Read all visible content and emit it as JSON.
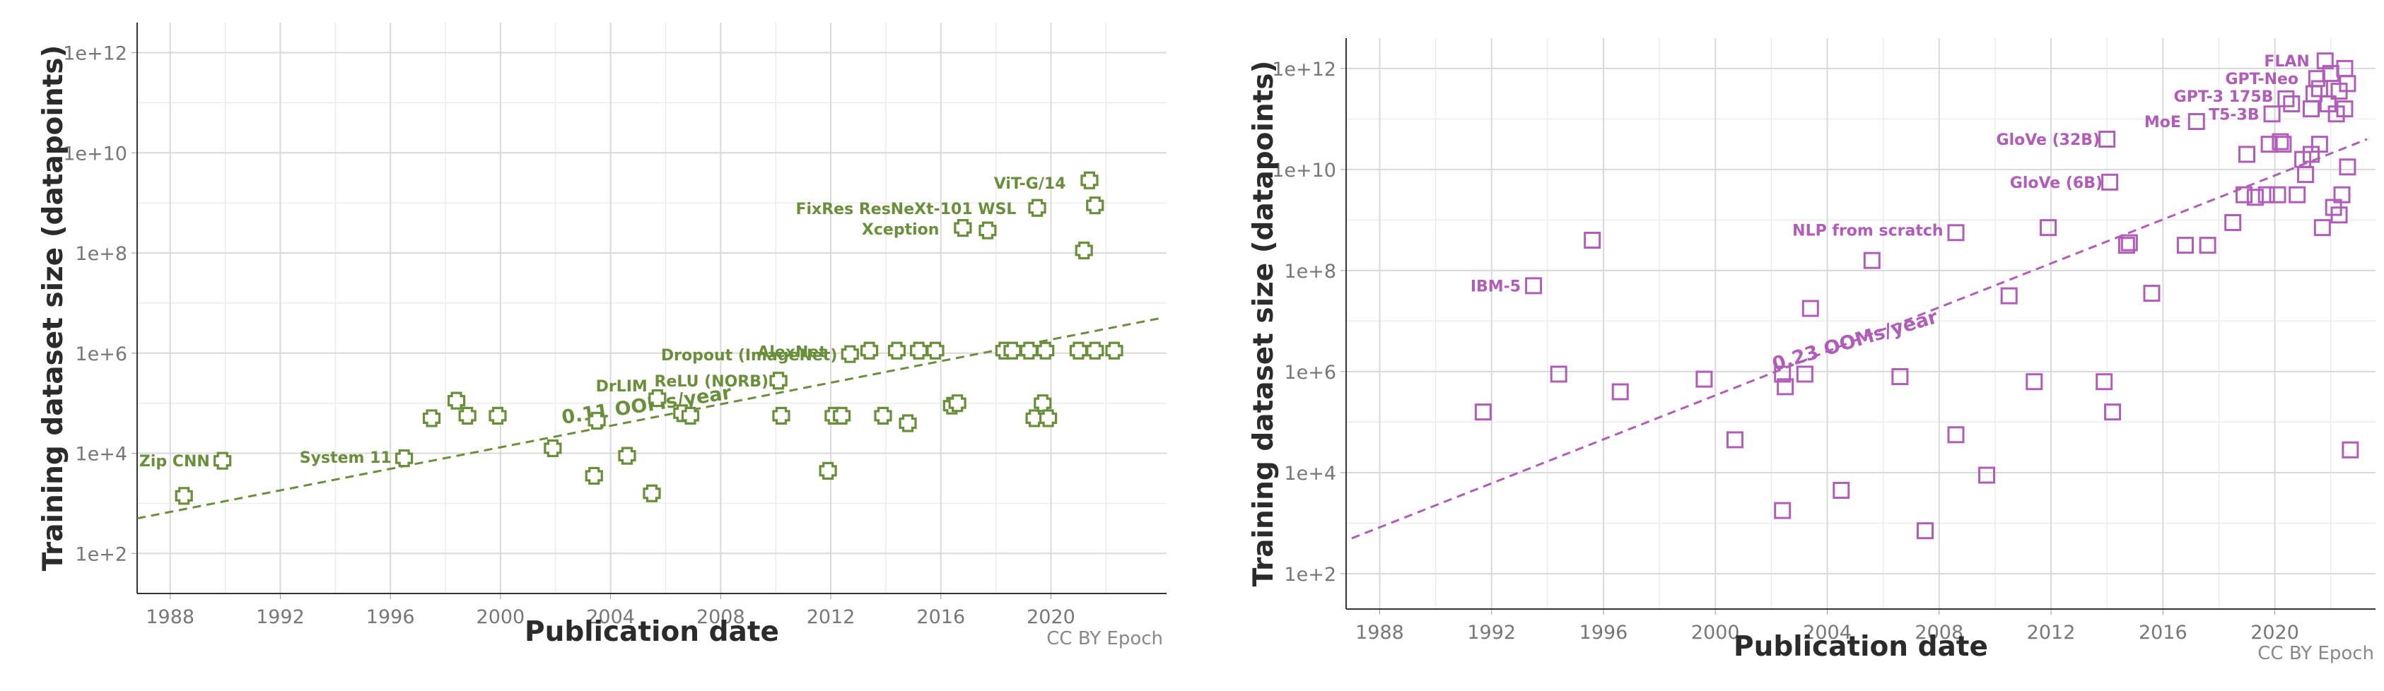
{
  "chart_data": [
    {
      "type": "scatter",
      "color": "#6a8f3a",
      "marker": "plus",
      "xlabel": "Publication date",
      "ylabel": "Training dataset size (datapoints)",
      "credit": "CC BY Epoch",
      "xlim": [
        1986.8,
        2024.2
      ],
      "ylim_log10": [
        1.2,
        12.6
      ],
      "x_ticks": [
        "1988",
        "1992",
        "1996",
        "2000",
        "2004",
        "2008",
        "2012",
        "2016",
        "2020"
      ],
      "y_ticks": [
        "1e+2",
        "1e+4",
        "1e+6",
        "1e+8",
        "1e+10",
        "1e+12"
      ],
      "grid": true,
      "trend": {
        "label": "0.11 OOMs/year",
        "x": [
          1986.8,
          2024.0
        ],
        "log10_y": [
          2.7,
          6.7
        ]
      },
      "labels": [
        {
          "text": "Zip CNN",
          "x": 1989.8,
          "log10_y": 3.85
        },
        {
          "text": "System 11",
          "x": 1996.4,
          "log10_y": 3.92
        },
        {
          "text": "DrLIM",
          "x": 2005.7,
          "log10_y": 5.35
        },
        {
          "text": "ReLU (NORB)",
          "x": 2010.1,
          "log10_y": 5.45
        },
        {
          "text": "Dropout (ImageNet)",
          "x": 2012.6,
          "log10_y": 5.97
        },
        {
          "text": "AlexNet",
          "x": 2012.2,
          "log10_y": 6.03
        },
        {
          "text": "Xception",
          "x": 2016.3,
          "log10_y": 8.48
        },
        {
          "text": "FixRes ResNeXt-101 WSL",
          "x": 2019.1,
          "log10_y": 8.89
        },
        {
          "text": "ViT-G/14",
          "x": 2020.9,
          "log10_y": 9.4
        }
      ],
      "points": [
        {
          "x": 1988.5,
          "log10_y": 3.15
        },
        {
          "x": 1989.9,
          "log10_y": 3.85
        },
        {
          "x": 1996.5,
          "log10_y": 3.9
        },
        {
          "x": 1997.5,
          "log10_y": 4.7
        },
        {
          "x": 1998.4,
          "log10_y": 5.05
        },
        {
          "x": 1998.8,
          "log10_y": 4.75
        },
        {
          "x": 1999.9,
          "log10_y": 4.75
        },
        {
          "x": 2001.9,
          "log10_y": 4.1
        },
        {
          "x": 2003.4,
          "log10_y": 3.55
        },
        {
          "x": 2003.5,
          "log10_y": 4.65
        },
        {
          "x": 2004.6,
          "log10_y": 3.95
        },
        {
          "x": 2005.5,
          "log10_y": 3.2
        },
        {
          "x": 2005.7,
          "log10_y": 5.1
        },
        {
          "x": 2006.6,
          "log10_y": 4.8
        },
        {
          "x": 2006.9,
          "log10_y": 4.75
        },
        {
          "x": 2010.1,
          "log10_y": 5.45
        },
        {
          "x": 2010.2,
          "log10_y": 4.75
        },
        {
          "x": 2011.9,
          "log10_y": 3.65
        },
        {
          "x": 2012.1,
          "log10_y": 4.75
        },
        {
          "x": 2012.4,
          "log10_y": 4.75
        },
        {
          "x": 2012.7,
          "log10_y": 5.98
        },
        {
          "x": 2013.4,
          "log10_y": 6.05
        },
        {
          "x": 2013.9,
          "log10_y": 4.75
        },
        {
          "x": 2014.4,
          "log10_y": 6.05
        },
        {
          "x": 2014.8,
          "log10_y": 4.6
        },
        {
          "x": 2015.2,
          "log10_y": 6.05
        },
        {
          "x": 2015.8,
          "log10_y": 6.05
        },
        {
          "x": 2016.4,
          "log10_y": 4.95
        },
        {
          "x": 2016.6,
          "log10_y": 5.0
        },
        {
          "x": 2016.8,
          "log10_y": 8.5
        },
        {
          "x": 2017.7,
          "log10_y": 8.45
        },
        {
          "x": 2018.3,
          "log10_y": 6.05
        },
        {
          "x": 2018.6,
          "log10_y": 6.05
        },
        {
          "x": 2019.2,
          "log10_y": 6.05
        },
        {
          "x": 2019.4,
          "log10_y": 4.7
        },
        {
          "x": 2019.7,
          "log10_y": 5.0
        },
        {
          "x": 2019.8,
          "log10_y": 6.05
        },
        {
          "x": 2019.9,
          "log10_y": 4.7
        },
        {
          "x": 2019.5,
          "log10_y": 8.9
        },
        {
          "x": 2021.0,
          "log10_y": 6.05
        },
        {
          "x": 2021.2,
          "log10_y": 8.05
        },
        {
          "x": 2021.6,
          "log10_y": 6.05
        },
        {
          "x": 2021.6,
          "log10_y": 8.95
        },
        {
          "x": 2021.4,
          "log10_y": 9.45
        },
        {
          "x": 2022.3,
          "log10_y": 6.05
        }
      ]
    },
    {
      "type": "scatter",
      "color": "#b05cb8",
      "marker": "square",
      "xlabel": "Publication date",
      "ylabel": "Training dataset size (datapoints)",
      "credit": "CC BY Epoch",
      "xlim": [
        1986.8,
        2023.6
      ],
      "ylim_log10": [
        1.3,
        12.6
      ],
      "x_ticks": [
        "1988",
        "1992",
        "1996",
        "2000",
        "2004",
        "2008",
        "2012",
        "2016",
        "2020"
      ],
      "y_ticks": [
        "1e+2",
        "1e+4",
        "1e+6",
        "1e+8",
        "1e+10",
        "1e+12"
      ],
      "grid": true,
      "trend": {
        "label": "0.23 OOMs/year",
        "x": [
          1987.0,
          2023.3
        ],
        "log10_y": [
          2.7,
          10.6
        ]
      },
      "labels": [
        {
          "text": "IBM-5",
          "x": 1993.4,
          "log10_y": 7.7
        },
        {
          "text": "NLP from scratch",
          "x": 2008.5,
          "log10_y": 8.8
        },
        {
          "text": "GloVe (6B)",
          "x": 2014.2,
          "log10_y": 9.75
        },
        {
          "text": "GloVe (32B)",
          "x": 2014.1,
          "log10_y": 10.6
        },
        {
          "text": "MoE",
          "x": 2017.0,
          "log10_y": 10.95
        },
        {
          "text": "T5-3B",
          "x": 2019.8,
          "log10_y": 11.1
        },
        {
          "text": "GPT-3 175B",
          "x": 2020.3,
          "log10_y": 11.45
        },
        {
          "text": "GPT-Neo",
          "x": 2021.2,
          "log10_y": 11.8
        },
        {
          "text": "FLAN",
          "x": 2021.6,
          "log10_y": 12.15
        }
      ],
      "points": [
        {
          "x": 1991.7,
          "log10_y": 5.2
        },
        {
          "x": 1993.5,
          "log10_y": 7.7
        },
        {
          "x": 1994.4,
          "log10_y": 5.95
        },
        {
          "x": 1995.6,
          "log10_y": 8.6
        },
        {
          "x": 1996.6,
          "log10_y": 5.6
        },
        {
          "x": 1999.6,
          "log10_y": 5.85
        },
        {
          "x": 2000.7,
          "log10_y": 4.65
        },
        {
          "x": 2002.4,
          "log10_y": 3.25
        },
        {
          "x": 2002.4,
          "log10_y": 5.95
        },
        {
          "x": 2002.5,
          "log10_y": 5.7
        },
        {
          "x": 2003.2,
          "log10_y": 5.95
        },
        {
          "x": 2003.4,
          "log10_y": 7.25
        },
        {
          "x": 2004.5,
          "log10_y": 3.65
        },
        {
          "x": 2005.6,
          "log10_y": 8.2
        },
        {
          "x": 2006.6,
          "log10_y": 5.9
        },
        {
          "x": 2007.5,
          "log10_y": 2.85
        },
        {
          "x": 2008.6,
          "log10_y": 4.75
        },
        {
          "x": 2008.6,
          "log10_y": 8.75
        },
        {
          "x": 2009.7,
          "log10_y": 3.95
        },
        {
          "x": 2010.5,
          "log10_y": 7.5
        },
        {
          "x": 2011.4,
          "log10_y": 5.8
        },
        {
          "x": 2011.9,
          "log10_y": 8.85
        },
        {
          "x": 2013.9,
          "log10_y": 5.8
        },
        {
          "x": 2014.2,
          "log10_y": 5.2
        },
        {
          "x": 2014.1,
          "log10_y": 9.75
        },
        {
          "x": 2014.0,
          "log10_y": 10.6
        },
        {
          "x": 2014.7,
          "log10_y": 8.5
        },
        {
          "x": 2014.8,
          "log10_y": 8.55
        },
        {
          "x": 2015.6,
          "log10_y": 7.55
        },
        {
          "x": 2016.8,
          "log10_y": 8.5
        },
        {
          "x": 2017.2,
          "log10_y": 10.95
        },
        {
          "x": 2017.6,
          "log10_y": 8.5
        },
        {
          "x": 2018.5,
          "log10_y": 8.95
        },
        {
          "x": 2018.9,
          "log10_y": 9.5
        },
        {
          "x": 2019.0,
          "log10_y": 10.3
        },
        {
          "x": 2019.3,
          "log10_y": 9.45
        },
        {
          "x": 2019.7,
          "log10_y": 9.5
        },
        {
          "x": 2019.8,
          "log10_y": 10.5
        },
        {
          "x": 2019.9,
          "log10_y": 11.1
        },
        {
          "x": 2020.1,
          "log10_y": 9.5
        },
        {
          "x": 2020.2,
          "log10_y": 10.55
        },
        {
          "x": 2020.3,
          "log10_y": 10.5
        },
        {
          "x": 2020.4,
          "log10_y": 11.4
        },
        {
          "x": 2020.6,
          "log10_y": 11.3
        },
        {
          "x": 2020.8,
          "log10_y": 9.5
        },
        {
          "x": 2021.0,
          "log10_y": 10.2
        },
        {
          "x": 2021.1,
          "log10_y": 9.9
        },
        {
          "x": 2021.3,
          "log10_y": 10.3
        },
        {
          "x": 2021.3,
          "log10_y": 11.2
        },
        {
          "x": 2021.4,
          "log10_y": 11.5
        },
        {
          "x": 2021.5,
          "log10_y": 11.8
        },
        {
          "x": 2021.6,
          "log10_y": 10.5
        },
        {
          "x": 2021.6,
          "log10_y": 11.6
        },
        {
          "x": 2021.7,
          "log10_y": 8.85
        },
        {
          "x": 2021.8,
          "log10_y": 12.15
        },
        {
          "x": 2021.9,
          "log10_y": 11.3
        },
        {
          "x": 2022.0,
          "log10_y": 11.9
        },
        {
          "x": 2022.1,
          "log10_y": 9.25
        },
        {
          "x": 2022.2,
          "log10_y": 11.1
        },
        {
          "x": 2022.3,
          "log10_y": 9.1
        },
        {
          "x": 2022.3,
          "log10_y": 11.55
        },
        {
          "x": 2022.4,
          "log10_y": 9.5
        },
        {
          "x": 2022.5,
          "log10_y": 12.0
        },
        {
          "x": 2022.5,
          "log10_y": 11.2
        },
        {
          "x": 2022.6,
          "log10_y": 10.05
        },
        {
          "x": 2022.6,
          "log10_y": 11.7
        },
        {
          "x": 2022.7,
          "log10_y": 4.45
        }
      ]
    }
  ]
}
